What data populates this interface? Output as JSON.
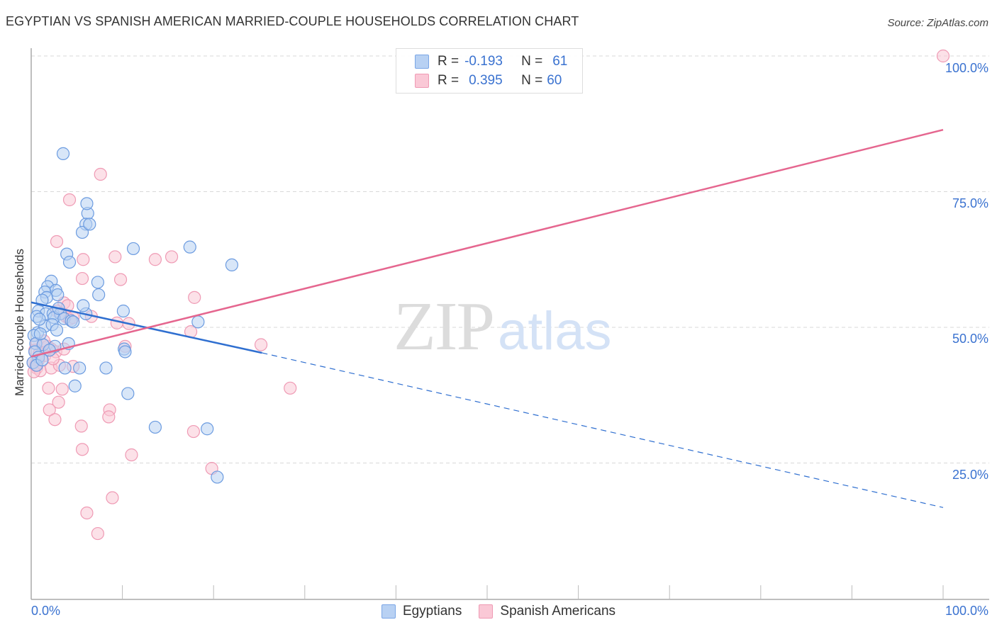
{
  "header": {
    "title": "EGYPTIAN VS SPANISH AMERICAN MARRIED-COUPLE HOUSEHOLDS CORRELATION CHART",
    "source": "Source: ZipAtlas.com"
  },
  "legend": {
    "rows": [
      {
        "r_label": "R =",
        "r_value": "-0.193",
        "n_label": "N =",
        "n_value": "61",
        "color": "#b8d1f3"
      },
      {
        "r_label": "R =",
        "r_value": "0.395",
        "n_label": "N =",
        "n_value": "60",
        "color": "#fac8d6"
      }
    ]
  },
  "bottom_legend": {
    "items": [
      {
        "label": "Egyptians",
        "color": "#b8d1f3"
      },
      {
        "label": "Spanish Americans",
        "color": "#fac8d6"
      }
    ]
  },
  "axes": {
    "y_title": "Married-couple Households",
    "y_ticks": [
      "100.0%",
      "75.0%",
      "50.0%",
      "25.0%"
    ],
    "x_ticks": [
      "0.0%",
      "100.0%"
    ]
  },
  "watermark": {
    "zip": "ZIP",
    "atlas": "atlas"
  },
  "colors": {
    "blue_fill": "#b8d1f3",
    "blue_stroke": "#6b9be0",
    "blue_line": "#2f6fd0",
    "pink_fill": "#fac8d6",
    "pink_stroke": "#ef9ab4",
    "pink_line": "#e5668f",
    "tick_label": "#3a72d0",
    "grid": "#d8d8d8"
  },
  "chart_data": {
    "type": "scatter",
    "title": "EGYPTIAN VS SPANISH AMERICAN MARRIED-COUPLE HOUSEHOLDS CORRELATION CHART",
    "xlabel": "",
    "ylabel": "Married-couple Households",
    "xlim": [
      0,
      100
    ],
    "ylim": [
      0,
      100
    ],
    "x_tick_labels": [
      "0.0%",
      "100.0%"
    ],
    "y_tick_labels": [
      "25.0%",
      "50.0%",
      "75.0%",
      "100.0%"
    ],
    "y_gridlines": [
      25,
      50,
      75,
      100
    ],
    "grid": true,
    "legend_position": "top-center and bottom",
    "series": [
      {
        "name": "Egyptians",
        "R": -0.193,
        "N": 61,
        "color": "#b8d1f3",
        "trend": {
          "x": [
            0,
            25.3,
            100
          ],
          "y": [
            54.6,
            45.3,
            16.8
          ],
          "solid_until_x": 25.3
        },
        "points": [
          [
            3.5,
            82.0
          ],
          [
            6.2,
            71.0
          ],
          [
            6.0,
            69.0
          ],
          [
            5.6,
            67.5
          ],
          [
            6.4,
            69.0
          ],
          [
            6.1,
            72.8
          ],
          [
            3.9,
            63.5
          ],
          [
            4.2,
            62.0
          ],
          [
            2.2,
            58.5
          ],
          [
            1.8,
            57.5
          ],
          [
            2.7,
            56.8
          ],
          [
            1.5,
            56.5
          ],
          [
            2.9,
            56.0
          ],
          [
            1.7,
            55.5
          ],
          [
            1.2,
            55.0
          ],
          [
            7.3,
            58.3
          ],
          [
            7.4,
            56.0
          ],
          [
            11.2,
            64.5
          ],
          [
            17.4,
            64.8
          ],
          [
            22.0,
            61.5
          ],
          [
            0.8,
            53.0
          ],
          [
            1.6,
            52.5
          ],
          [
            2.4,
            52.5
          ],
          [
            3.2,
            52.5
          ],
          [
            0.6,
            52.0
          ],
          [
            2.5,
            51.8
          ],
          [
            3.6,
            51.6
          ],
          [
            4.4,
            51.2
          ],
          [
            6.0,
            52.5
          ],
          [
            5.7,
            54.0
          ],
          [
            0.7,
            49.0
          ],
          [
            1.5,
            50.2
          ],
          [
            2.3,
            50.5
          ],
          [
            4.6,
            51.0
          ],
          [
            0.3,
            48.5
          ],
          [
            10.1,
            53.0
          ],
          [
            18.3,
            51.0
          ],
          [
            0.5,
            47.0
          ],
          [
            1.3,
            46.8
          ],
          [
            2.6,
            46.5
          ],
          [
            4.1,
            47.0
          ],
          [
            0.4,
            45.5
          ],
          [
            0.8,
            44.5
          ],
          [
            0.2,
            43.5
          ],
          [
            0.6,
            43.0
          ],
          [
            3.7,
            42.5
          ],
          [
            5.3,
            42.5
          ],
          [
            8.2,
            42.5
          ],
          [
            10.2,
            46.0
          ],
          [
            10.3,
            45.5
          ],
          [
            4.8,
            39.2
          ],
          [
            10.6,
            37.8
          ],
          [
            13.6,
            31.6
          ],
          [
            19.3,
            31.3
          ],
          [
            20.4,
            22.4
          ],
          [
            1.0,
            48.8
          ],
          [
            2.0,
            45.8
          ],
          [
            3.0,
            53.5
          ],
          [
            1.2,
            44.0
          ],
          [
            2.8,
            49.5
          ],
          [
            0.9,
            51.5
          ]
        ]
      },
      {
        "name": "Spanish Americans",
        "R": 0.395,
        "N": 60,
        "color": "#fac8d6",
        "trend": {
          "x": [
            0,
            100
          ],
          "y": [
            44.6,
            86.4
          ]
        },
        "points": [
          [
            100.0,
            100.0
          ],
          [
            7.6,
            78.2
          ],
          [
            4.2,
            73.5
          ],
          [
            2.8,
            65.8
          ],
          [
            5.7,
            62.5
          ],
          [
            9.2,
            63.0
          ],
          [
            13.6,
            62.5
          ],
          [
            15.4,
            63.0
          ],
          [
            5.6,
            59.0
          ],
          [
            9.8,
            58.8
          ],
          [
            17.9,
            55.5
          ],
          [
            3.6,
            54.5
          ],
          [
            4.0,
            54.0
          ],
          [
            6.6,
            52.0
          ],
          [
            2.8,
            53.0
          ],
          [
            3.3,
            52.5
          ],
          [
            3.8,
            52.0
          ],
          [
            4.2,
            51.5
          ],
          [
            4.6,
            51.8
          ],
          [
            9.4,
            50.8
          ],
          [
            10.7,
            50.7
          ],
          [
            17.5,
            49.2
          ],
          [
            0.6,
            47.0
          ],
          [
            1.3,
            46.8
          ],
          [
            1.8,
            46.5
          ],
          [
            2.2,
            46.0
          ],
          [
            2.7,
            45.5
          ],
          [
            0.4,
            45.8
          ],
          [
            0.9,
            45.2
          ],
          [
            1.5,
            44.8
          ],
          [
            10.3,
            46.5
          ],
          [
            25.2,
            46.8
          ],
          [
            0.2,
            43.5
          ],
          [
            0.6,
            42.5
          ],
          [
            1.0,
            42.0
          ],
          [
            0.3,
            41.8
          ],
          [
            2.2,
            42.5
          ],
          [
            3.1,
            43.0
          ],
          [
            4.6,
            42.8
          ],
          [
            1.9,
            38.8
          ],
          [
            3.4,
            38.6
          ],
          [
            28.4,
            38.8
          ],
          [
            3.0,
            36.2
          ],
          [
            2.0,
            34.8
          ],
          [
            2.6,
            33.0
          ],
          [
            8.6,
            34.8
          ],
          [
            8.5,
            33.5
          ],
          [
            5.5,
            31.8
          ],
          [
            17.8,
            30.8
          ],
          [
            5.6,
            27.5
          ],
          [
            11.0,
            26.5
          ],
          [
            19.8,
            24.0
          ],
          [
            8.9,
            18.6
          ],
          [
            6.1,
            15.8
          ],
          [
            7.3,
            12.0
          ],
          [
            0.8,
            44.0
          ],
          [
            1.4,
            47.5
          ],
          [
            2.4,
            44.2
          ],
          [
            0.5,
            43.0
          ],
          [
            3.6,
            46.0
          ]
        ]
      }
    ]
  }
}
